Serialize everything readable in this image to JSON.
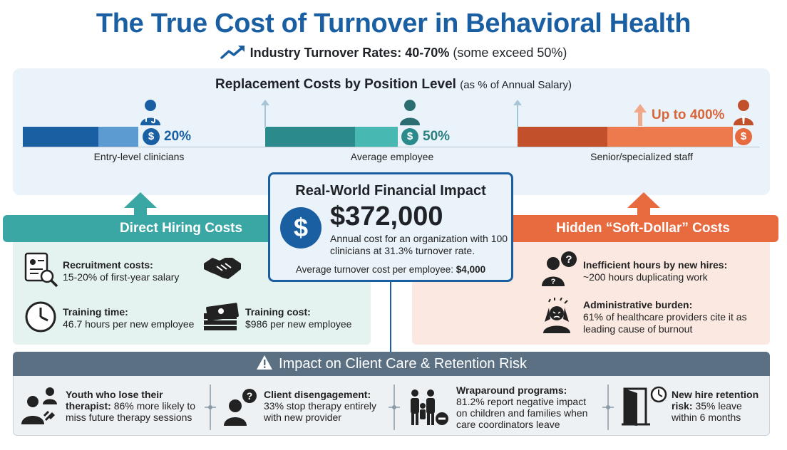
{
  "title": "The True Cost of Turnover in Behavioral Health",
  "subtitle": {
    "bold": "Industry Turnover Rates: 40-70%",
    "normal": "(some exceed 50%)"
  },
  "replacement": {
    "title_bold": "Replacement Costs by Position Level",
    "title_note": "(as % of Annual Salary)",
    "levels": [
      {
        "label": "Entry-level clinicians",
        "value_text": "20%",
        "value": 20
      },
      {
        "label": "Average employee",
        "value_text": "50%",
        "value": 50
      },
      {
        "label": "Senior/specialized staff",
        "value_text": "Up to 400%",
        "value": 400
      }
    ]
  },
  "direct": {
    "header": "Direct Hiring Costs",
    "items": [
      {
        "title": "Recruitment costs:",
        "text": "15-20% of first-year salary"
      },
      {
        "title": "Training time:",
        "text": "46.7 hours per new employee"
      },
      {
        "title": "Training cost:",
        "text": "$986 per new employee"
      }
    ]
  },
  "center": {
    "title": "Real-World Financial Impact",
    "amount": "$372,000",
    "desc": "Annual cost for an organization with 100 clinicians at 31.3% turnover rate.",
    "avg_label": "Average turnover cost per employee:",
    "avg_value": "$4,000"
  },
  "hidden": {
    "header": "Hidden “Soft-Dollar” Costs",
    "items": [
      {
        "title": "Inefficient hours by new hires:",
        "text": "~200 hours duplicating work"
      },
      {
        "title": "Administrative burden:",
        "text": "61% of healthcare providers cite it as leading cause of burnout"
      }
    ]
  },
  "impact": {
    "header": "Impact on Client Care & Retention Risk",
    "items": [
      {
        "title": "Youth who lose their therapist:",
        "text": "86% more likely to miss future therapy sessions"
      },
      {
        "title": "Client disengagement:",
        "text": "33% stop therapy entirely with new provider"
      },
      {
        "title": "Wraparound programs:",
        "text": "81.2% report negative impact on children and families when care coordinators leave"
      },
      {
        "title": "New hire retention risk:",
        "text": "35% leave within 6 months"
      }
    ]
  },
  "colors": {
    "primary": "#1b5fa3",
    "teal": "#3aa7a4",
    "orange": "#e86a3f",
    "slate": "#5b7183"
  }
}
